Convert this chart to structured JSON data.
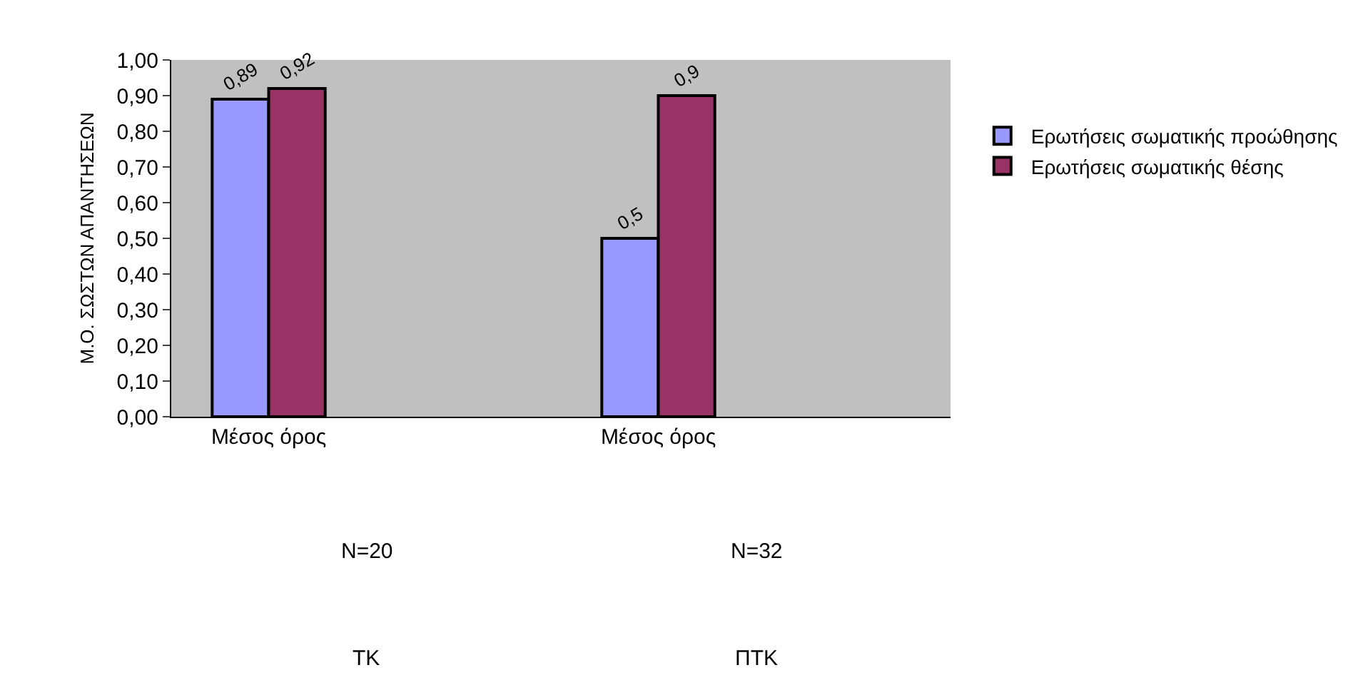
{
  "chart_data": {
    "type": "bar",
    "ylabel": "Μ.Ο. ΣΩΣΤΩΝ ΑΠΑΝΤΗΣΕΩΝ",
    "categories": [
      "Μέσος όρος",
      null,
      "Μέσος όρος",
      null
    ],
    "series": [
      {
        "name": "Ερωτήσεις σωματικής προώθησης",
        "color": "#9999ff",
        "values": [
          0.89,
          null,
          0.5,
          null
        ],
        "value_labels": [
          "0,89",
          null,
          "0,5",
          null
        ]
      },
      {
        "name": "Ερωτήσεις σωματικής θέσης",
        "color": "#993366",
        "values": [
          0.92,
          null,
          0.9,
          null
        ],
        "value_labels": [
          "0,92",
          null,
          "0,9",
          null
        ]
      }
    ],
    "annotations": [
      "N=20",
      "ΤΚ",
      "N=32",
      "ΠΤΚ"
    ],
    "ylim": [
      0,
      1
    ],
    "yticks": [
      {
        "value": 0,
        "label": "0,00"
      },
      {
        "value": 0.1,
        "label": "0,10"
      },
      {
        "value": 0.2,
        "label": "0,20"
      },
      {
        "value": 0.3,
        "label": "0,30"
      },
      {
        "value": 0.4,
        "label": "0,40"
      },
      {
        "value": 0.5,
        "label": "0,50"
      },
      {
        "value": 0.6,
        "label": "0,60"
      },
      {
        "value": 0.7,
        "label": "0,70"
      },
      {
        "value": 0.8,
        "label": "0,80"
      },
      {
        "value": 0.9,
        "label": "0,90"
      },
      {
        "value": 1,
        "label": "1,00"
      }
    ],
    "grid": false,
    "legend": "right"
  }
}
